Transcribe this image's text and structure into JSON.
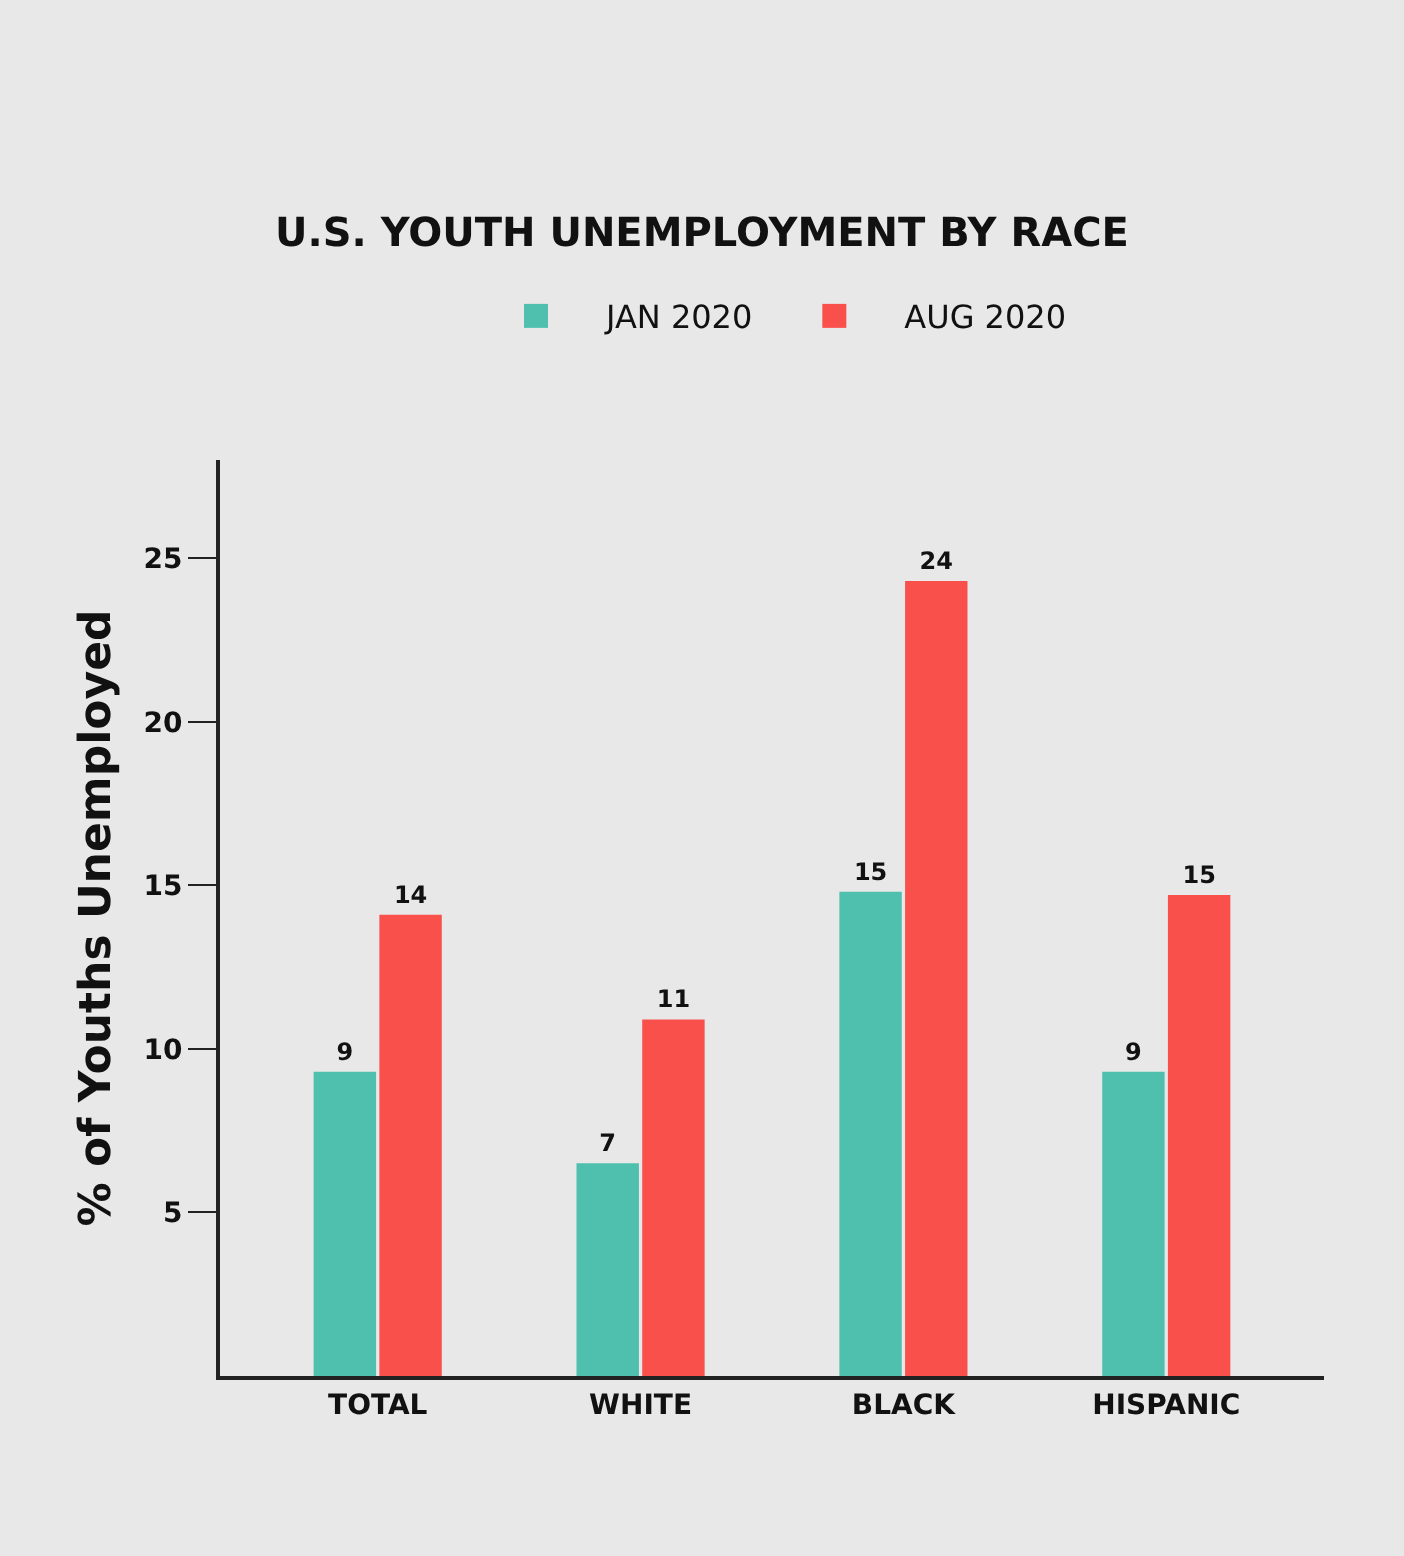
{
  "chart_data": {
    "type": "bar",
    "title": "U.S. YOUTH UNEMPLOYMENT BY RACE",
    "ylabel": "% of Youths Unemployed",
    "categories": [
      "TOTAL",
      "WHITE",
      "BLACK",
      "HISPANIC"
    ],
    "series": [
      {
        "name": "JAN 2020",
        "color": "#4fc0ad",
        "values": [
          9.3,
          6.5,
          14.8,
          9.3
        ],
        "value_labels": [
          "9",
          "7",
          "15",
          "9"
        ]
      },
      {
        "name": "AUG 2020",
        "color": "#f9504c",
        "values": [
          14.1,
          10.9,
          24.3,
          14.7
        ],
        "value_labels": [
          "14",
          "11",
          "24",
          "15"
        ]
      }
    ],
    "ylim": [
      0,
      28
    ],
    "yticks": [
      5,
      10,
      15,
      20,
      25
    ],
    "grid": false,
    "legend": "top"
  }
}
